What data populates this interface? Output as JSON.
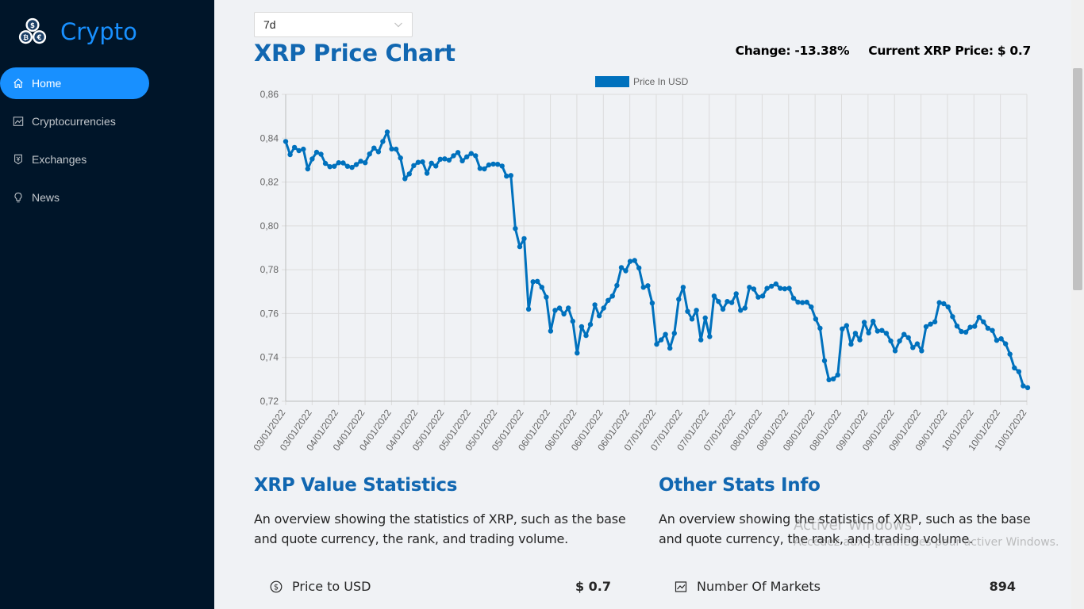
{
  "app": {
    "name": "Crypto"
  },
  "sidebar": {
    "items": [
      {
        "label": "Home",
        "icon": "home-icon",
        "active": true
      },
      {
        "label": "Cryptocurrencies",
        "icon": "fund-icon",
        "active": false
      },
      {
        "label": "Exchanges",
        "icon": "money-collect-icon",
        "active": false
      },
      {
        "label": "News",
        "icon": "bulb-icon",
        "active": false
      }
    ]
  },
  "period_select": {
    "value": "7d"
  },
  "chart_header": {
    "title": "XRP Price Chart",
    "change": "Change: -13.38%",
    "current_price": "Current XRP Price: $ 0.7"
  },
  "chart_data": {
    "type": "line",
    "title": "",
    "legend": "Price In USD",
    "legend_position": "top-center",
    "xlabel": "",
    "ylabel": "",
    "ylim": [
      0.72,
      0.86
    ],
    "yticks": [
      "0,86",
      "0,84",
      "0,82",
      "0,80",
      "0,78",
      "0,76",
      "0,74",
      "0,72"
    ],
    "xtick_labels": [
      "03/01/2022",
      "03/01/2022",
      "04/01/2022",
      "04/01/2022",
      "04/01/2022",
      "04/01/2022",
      "05/01/2022",
      "05/01/2022",
      "05/01/2022",
      "05/01/2022",
      "06/01/2022",
      "06/01/2022",
      "06/01/2022",
      "06/01/2022",
      "07/01/2022",
      "07/01/2022",
      "07/01/2022",
      "07/01/2022",
      "08/01/2022",
      "08/01/2022",
      "08/01/2022",
      "08/01/2022",
      "09/01/2022",
      "09/01/2022",
      "09/01/2022",
      "09/01/2022",
      "10/01/2022",
      "10/01/2022",
      "10/01/2022"
    ],
    "series": [
      {
        "name": "Price In USD",
        "color": "#0071bd",
        "values": [
          0.8385,
          0.8325,
          0.8358,
          0.8343,
          0.835,
          0.826,
          0.8305,
          0.8336,
          0.8327,
          0.8285,
          0.827,
          0.8272,
          0.8288,
          0.8287,
          0.8272,
          0.8267,
          0.828,
          0.8295,
          0.8288,
          0.8328,
          0.8355,
          0.8338,
          0.8385,
          0.8428,
          0.8351,
          0.835,
          0.831,
          0.8215,
          0.8237,
          0.8275,
          0.829,
          0.8292,
          0.824,
          0.8286,
          0.8273,
          0.8304,
          0.8306,
          0.83,
          0.832,
          0.8335,
          0.8297,
          0.8315,
          0.833,
          0.832,
          0.8262,
          0.826,
          0.8278,
          0.8282,
          0.8281,
          0.8273,
          0.8227,
          0.823,
          0.7988,
          0.7905,
          0.7942,
          0.762,
          0.7745,
          0.7747,
          0.772,
          0.7675,
          0.752,
          0.7615,
          0.7625,
          0.7598,
          0.7625,
          0.7565,
          0.742,
          0.754,
          0.75,
          0.755,
          0.764,
          0.759,
          0.7625,
          0.766,
          0.768,
          0.7728,
          0.781,
          0.7795,
          0.7838,
          0.7842,
          0.7808,
          0.772,
          0.7727,
          0.7648,
          0.746,
          0.748,
          0.7505,
          0.7442,
          0.751,
          0.7665,
          0.772,
          0.761,
          0.7575,
          0.7615,
          0.748,
          0.758,
          0.7495,
          0.768,
          0.7655,
          0.762,
          0.7655,
          0.765,
          0.769,
          0.7615,
          0.7625,
          0.772,
          0.7712,
          0.7675,
          0.768,
          0.7715,
          0.7725,
          0.7735,
          0.7715,
          0.7713,
          0.7715,
          0.767,
          0.7652,
          0.765,
          0.7652,
          0.763,
          0.7575,
          0.7533,
          0.7385,
          0.7298,
          0.7302,
          0.732,
          0.753,
          0.7545,
          0.746,
          0.751,
          0.748,
          0.756,
          0.7512,
          0.7565,
          0.752,
          0.7523,
          0.751,
          0.7475,
          0.743,
          0.7475,
          0.7505,
          0.749,
          0.7445,
          0.7462,
          0.743,
          0.754,
          0.7552,
          0.7562,
          0.765,
          0.7645,
          0.763,
          0.7586,
          0.7543,
          0.7518,
          0.7515,
          0.7538,
          0.7542,
          0.7583,
          0.7562,
          0.7533,
          0.7523,
          0.7478,
          0.7485,
          0.7462,
          0.7415,
          0.7352,
          0.7335,
          0.727,
          0.7262
        ]
      }
    ]
  },
  "value_stats": {
    "title": "XRP Value Statistics",
    "description": "An overview showing the statistics of XRP, such as the base and quote currency, the rank, and trading volume.",
    "rows": [
      {
        "label": "Price to USD",
        "value": "$ 0.7",
        "icon": "dollar-circle-icon"
      }
    ]
  },
  "other_stats": {
    "title": "Other Stats Info",
    "description": "An overview showing the statistics of XRP, such as the base and quote currency, the rank, and trading volume.",
    "rows": [
      {
        "label": "Number Of Markets",
        "value": "894",
        "icon": "fund-icon"
      }
    ]
  },
  "watermark": {
    "line1": "Activer Windows",
    "line2": "Accédez aux paramètres pour activer Windows."
  }
}
